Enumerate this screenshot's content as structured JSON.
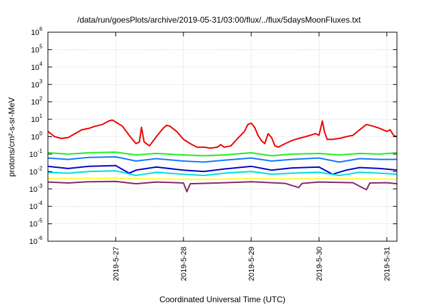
{
  "chart_data": {
    "type": "line",
    "title": "/data/run/goesPlots/archive/2019-05-31/03:00/flux/../flux/5daysMoonFluxes.txt",
    "xlabel": "Coordinated Universal Time (UTC)",
    "ylabel": "protons/cm²-s-sr-MeV",
    "yscale": "log",
    "ylim": [
      1e-06,
      1000000.0
    ],
    "y_ticks": [
      {
        "value": 1e-06,
        "base": "10",
        "exp": "-6"
      },
      {
        "value": 1e-05,
        "base": "10",
        "exp": "-5"
      },
      {
        "value": 0.0001,
        "base": "10",
        "exp": "-4"
      },
      {
        "value": 0.001,
        "base": "10",
        "exp": "-3"
      },
      {
        "value": 0.01,
        "base": "10",
        "exp": "-2"
      },
      {
        "value": 0.1,
        "base": "10",
        "exp": "-1"
      },
      {
        "value": 1.0,
        "base": "10",
        "exp": "0"
      },
      {
        "value": 10.0,
        "base": "10",
        "exp": "1"
      },
      {
        "value": 100.0,
        "base": "10",
        "exp": "2"
      },
      {
        "value": 1000.0,
        "base": "10",
        "exp": "3"
      },
      {
        "value": 10000.0,
        "base": "10",
        "exp": "4"
      },
      {
        "value": 100000.0,
        "base": "10",
        "exp": "5"
      },
      {
        "value": 1000000.0,
        "base": "10",
        "exp": "6"
      }
    ],
    "xlim_days": [
      26.0,
      31.15
    ],
    "x_ticks": [
      {
        "day": 27,
        "label": "2019-5-27"
      },
      {
        "day": 28,
        "label": "2019-5-28"
      },
      {
        "day": 29,
        "label": "2019-5-29"
      },
      {
        "day": 30,
        "label": "2019-5-30"
      },
      {
        "day": 31,
        "label": "2019-5-31"
      }
    ],
    "grid": true,
    "series": [
      {
        "color": "#ee0000",
        "points": [
          [
            26.0,
            2.0
          ],
          [
            26.1,
            1.0
          ],
          [
            26.2,
            0.8
          ],
          [
            26.3,
            0.9
          ],
          [
            26.4,
            1.5
          ],
          [
            26.5,
            2.5
          ],
          [
            26.6,
            3.0
          ],
          [
            26.7,
            4.0
          ],
          [
            26.8,
            5.0
          ],
          [
            26.9,
            8.0
          ],
          [
            26.95,
            9.0
          ],
          [
            27.0,
            7.0
          ],
          [
            27.1,
            4.0
          ],
          [
            27.2,
            1.2
          ],
          [
            27.3,
            0.4
          ],
          [
            27.35,
            0.5
          ],
          [
            27.38,
            3.5
          ],
          [
            27.42,
            0.5
          ],
          [
            27.5,
            0.3
          ],
          [
            27.6,
            1.0
          ],
          [
            27.7,
            3.0
          ],
          [
            27.75,
            4.5
          ],
          [
            27.8,
            4.0
          ],
          [
            27.9,
            2.0
          ],
          [
            28.0,
            0.7
          ],
          [
            28.1,
            0.4
          ],
          [
            28.2,
            0.25
          ],
          [
            28.3,
            0.25
          ],
          [
            28.4,
            0.22
          ],
          [
            28.5,
            0.25
          ],
          [
            28.55,
            0.35
          ],
          [
            28.6,
            0.25
          ],
          [
            28.7,
            0.3
          ],
          [
            28.8,
            0.8
          ],
          [
            28.9,
            2.0
          ],
          [
            28.95,
            5.0
          ],
          [
            29.0,
            6.0
          ],
          [
            29.05,
            3.5
          ],
          [
            29.1,
            1.2
          ],
          [
            29.15,
            0.6
          ],
          [
            29.2,
            0.4
          ],
          [
            29.25,
            1.5
          ],
          [
            29.3,
            0.9
          ],
          [
            29.35,
            0.3
          ],
          [
            29.4,
            0.25
          ],
          [
            29.5,
            0.4
          ],
          [
            29.6,
            0.6
          ],
          [
            29.7,
            0.8
          ],
          [
            29.8,
            1.0
          ],
          [
            29.9,
            1.3
          ],
          [
            29.95,
            1.5
          ],
          [
            30.0,
            1.2
          ],
          [
            30.05,
            8.0
          ],
          [
            30.08,
            2.0
          ],
          [
            30.12,
            0.7
          ],
          [
            30.2,
            0.7
          ],
          [
            30.3,
            0.8
          ],
          [
            30.4,
            1.0
          ],
          [
            30.5,
            1.2
          ],
          [
            30.6,
            2.5
          ],
          [
            30.7,
            5.0
          ],
          [
            30.8,
            4.0
          ],
          [
            30.9,
            3.0
          ],
          [
            31.0,
            2.0
          ],
          [
            31.05,
            2.5
          ],
          [
            31.1,
            1.2
          ],
          [
            31.15,
            1.0
          ]
        ]
      },
      {
        "color": "#22ee22",
        "points": [
          [
            26.0,
            0.12
          ],
          [
            26.3,
            0.1
          ],
          [
            26.6,
            0.12
          ],
          [
            27.0,
            0.13
          ],
          [
            27.3,
            0.09
          ],
          [
            27.6,
            0.11
          ],
          [
            28.0,
            0.09
          ],
          [
            28.3,
            0.08
          ],
          [
            28.6,
            0.09
          ],
          [
            29.0,
            0.12
          ],
          [
            29.3,
            0.08
          ],
          [
            29.6,
            0.1
          ],
          [
            30.0,
            0.11
          ],
          [
            30.3,
            0.09
          ],
          [
            30.6,
            0.11
          ],
          [
            30.9,
            0.1
          ],
          [
            31.15,
            0.12
          ]
        ]
      },
      {
        "color": "#1177ff",
        "points": [
          [
            26.0,
            0.06
          ],
          [
            26.3,
            0.05
          ],
          [
            26.6,
            0.065
          ],
          [
            27.0,
            0.07
          ],
          [
            27.3,
            0.04
          ],
          [
            27.6,
            0.055
          ],
          [
            28.0,
            0.04
          ],
          [
            28.3,
            0.035
          ],
          [
            28.6,
            0.045
          ],
          [
            29.0,
            0.06
          ],
          [
            29.3,
            0.04
          ],
          [
            29.6,
            0.05
          ],
          [
            30.0,
            0.06
          ],
          [
            30.3,
            0.035
          ],
          [
            30.6,
            0.055
          ],
          [
            30.9,
            0.05
          ],
          [
            31.15,
            0.05
          ]
        ]
      },
      {
        "color": "#0000cc",
        "points": [
          [
            26.0,
            0.02
          ],
          [
            26.3,
            0.015
          ],
          [
            26.6,
            0.02
          ],
          [
            27.0,
            0.022
          ],
          [
            27.2,
            0.008
          ],
          [
            27.3,
            0.012
          ],
          [
            27.6,
            0.018
          ],
          [
            28.0,
            0.012
          ],
          [
            28.3,
            0.01
          ],
          [
            28.6,
            0.014
          ],
          [
            29.0,
            0.02
          ],
          [
            29.3,
            0.012
          ],
          [
            29.6,
            0.016
          ],
          [
            30.0,
            0.018
          ],
          [
            30.2,
            0.007
          ],
          [
            30.4,
            0.012
          ],
          [
            30.6,
            0.017
          ],
          [
            30.9,
            0.015
          ],
          [
            31.15,
            0.012
          ]
        ]
      },
      {
        "color": "#00dddd",
        "points": [
          [
            26.0,
            0.009
          ],
          [
            26.3,
            0.008
          ],
          [
            26.6,
            0.01
          ],
          [
            27.0,
            0.011
          ],
          [
            27.3,
            0.006
          ],
          [
            27.6,
            0.009
          ],
          [
            28.0,
            0.007
          ],
          [
            28.3,
            0.006
          ],
          [
            28.6,
            0.008
          ],
          [
            29.0,
            0.01
          ],
          [
            29.3,
            0.007
          ],
          [
            29.6,
            0.008
          ],
          [
            30.0,
            0.009
          ],
          [
            30.3,
            0.006
          ],
          [
            30.6,
            0.009
          ],
          [
            30.9,
            0.008
          ],
          [
            31.15,
            0.007
          ]
        ]
      },
      {
        "color": "#ffff33",
        "points": [
          [
            26.0,
            0.004
          ],
          [
            26.5,
            0.004
          ],
          [
            27.0,
            0.0042
          ],
          [
            27.5,
            0.0038
          ],
          [
            28.0,
            0.0036
          ],
          [
            28.5,
            0.0036
          ],
          [
            29.0,
            0.004
          ],
          [
            29.5,
            0.0037
          ],
          [
            30.0,
            0.004
          ],
          [
            30.5,
            0.0038
          ],
          [
            31.0,
            0.0037
          ],
          [
            31.15,
            0.0036
          ]
        ]
      },
      {
        "color": "#882266",
        "points": [
          [
            26.0,
            0.0025
          ],
          [
            26.3,
            0.0022
          ],
          [
            26.6,
            0.0026
          ],
          [
            27.0,
            0.0027
          ],
          [
            27.3,
            0.002
          ],
          [
            27.6,
            0.0025
          ],
          [
            28.0,
            0.0022
          ],
          [
            28.05,
            0.0007
          ],
          [
            28.1,
            0.002
          ],
          [
            28.5,
            0.0022
          ],
          [
            29.0,
            0.0026
          ],
          [
            29.5,
            0.0021
          ],
          [
            29.7,
            0.0012
          ],
          [
            29.75,
            0.0021
          ],
          [
            30.0,
            0.0025
          ],
          [
            30.5,
            0.0023
          ],
          [
            30.7,
            0.0009
          ],
          [
            30.75,
            0.0022
          ],
          [
            31.0,
            0.0023
          ],
          [
            31.15,
            0.002
          ]
        ]
      }
    ]
  }
}
